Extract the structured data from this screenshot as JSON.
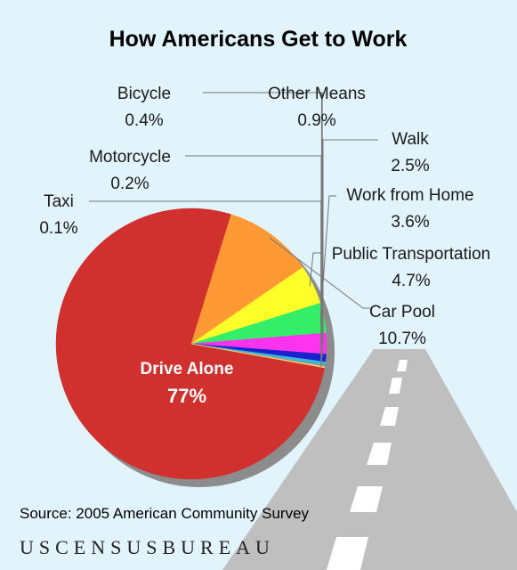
{
  "chart_data": {
    "type": "pie",
    "title": "How Americans Get to Work",
    "slices": [
      {
        "label": "Drive Alone",
        "value": 77,
        "display": "77%",
        "color": "#d0302e"
      },
      {
        "label": "Car Pool",
        "value": 10.7,
        "display": "10.7%",
        "color": "#ff9933"
      },
      {
        "label": "Public Transportation",
        "value": 4.7,
        "display": "4.7%",
        "color": "#ffff2a"
      },
      {
        "label": "Work from Home",
        "value": 3.6,
        "display": "3.6%",
        "color": "#33ee66"
      },
      {
        "label": "Walk",
        "value": 2.5,
        "display": "2.5%",
        "color": "#ff33ee"
      },
      {
        "label": "Other Means",
        "value": 0.9,
        "display": "0.9%",
        "color": "#1a22cc"
      },
      {
        "label": "Bicycle",
        "value": 0.4,
        "display": "0.4%",
        "color": "#33bbdd"
      },
      {
        "label": "Motorcycle",
        "value": 0.2,
        "display": "0.2%",
        "color": "#999999"
      },
      {
        "label": "Taxi",
        "value": 0.1,
        "display": "0.1%",
        "color": "#ffe066"
      }
    ]
  },
  "footer": {
    "source": "Source:  2005 American Community Survey",
    "brand": "USCENSUSBUREAU"
  },
  "colors": {
    "background": "#e1f3fb",
    "road": "#bfbfbf",
    "road_dash": "#ffffff",
    "shadow": "#8c8c8c",
    "leader": "#777777"
  }
}
